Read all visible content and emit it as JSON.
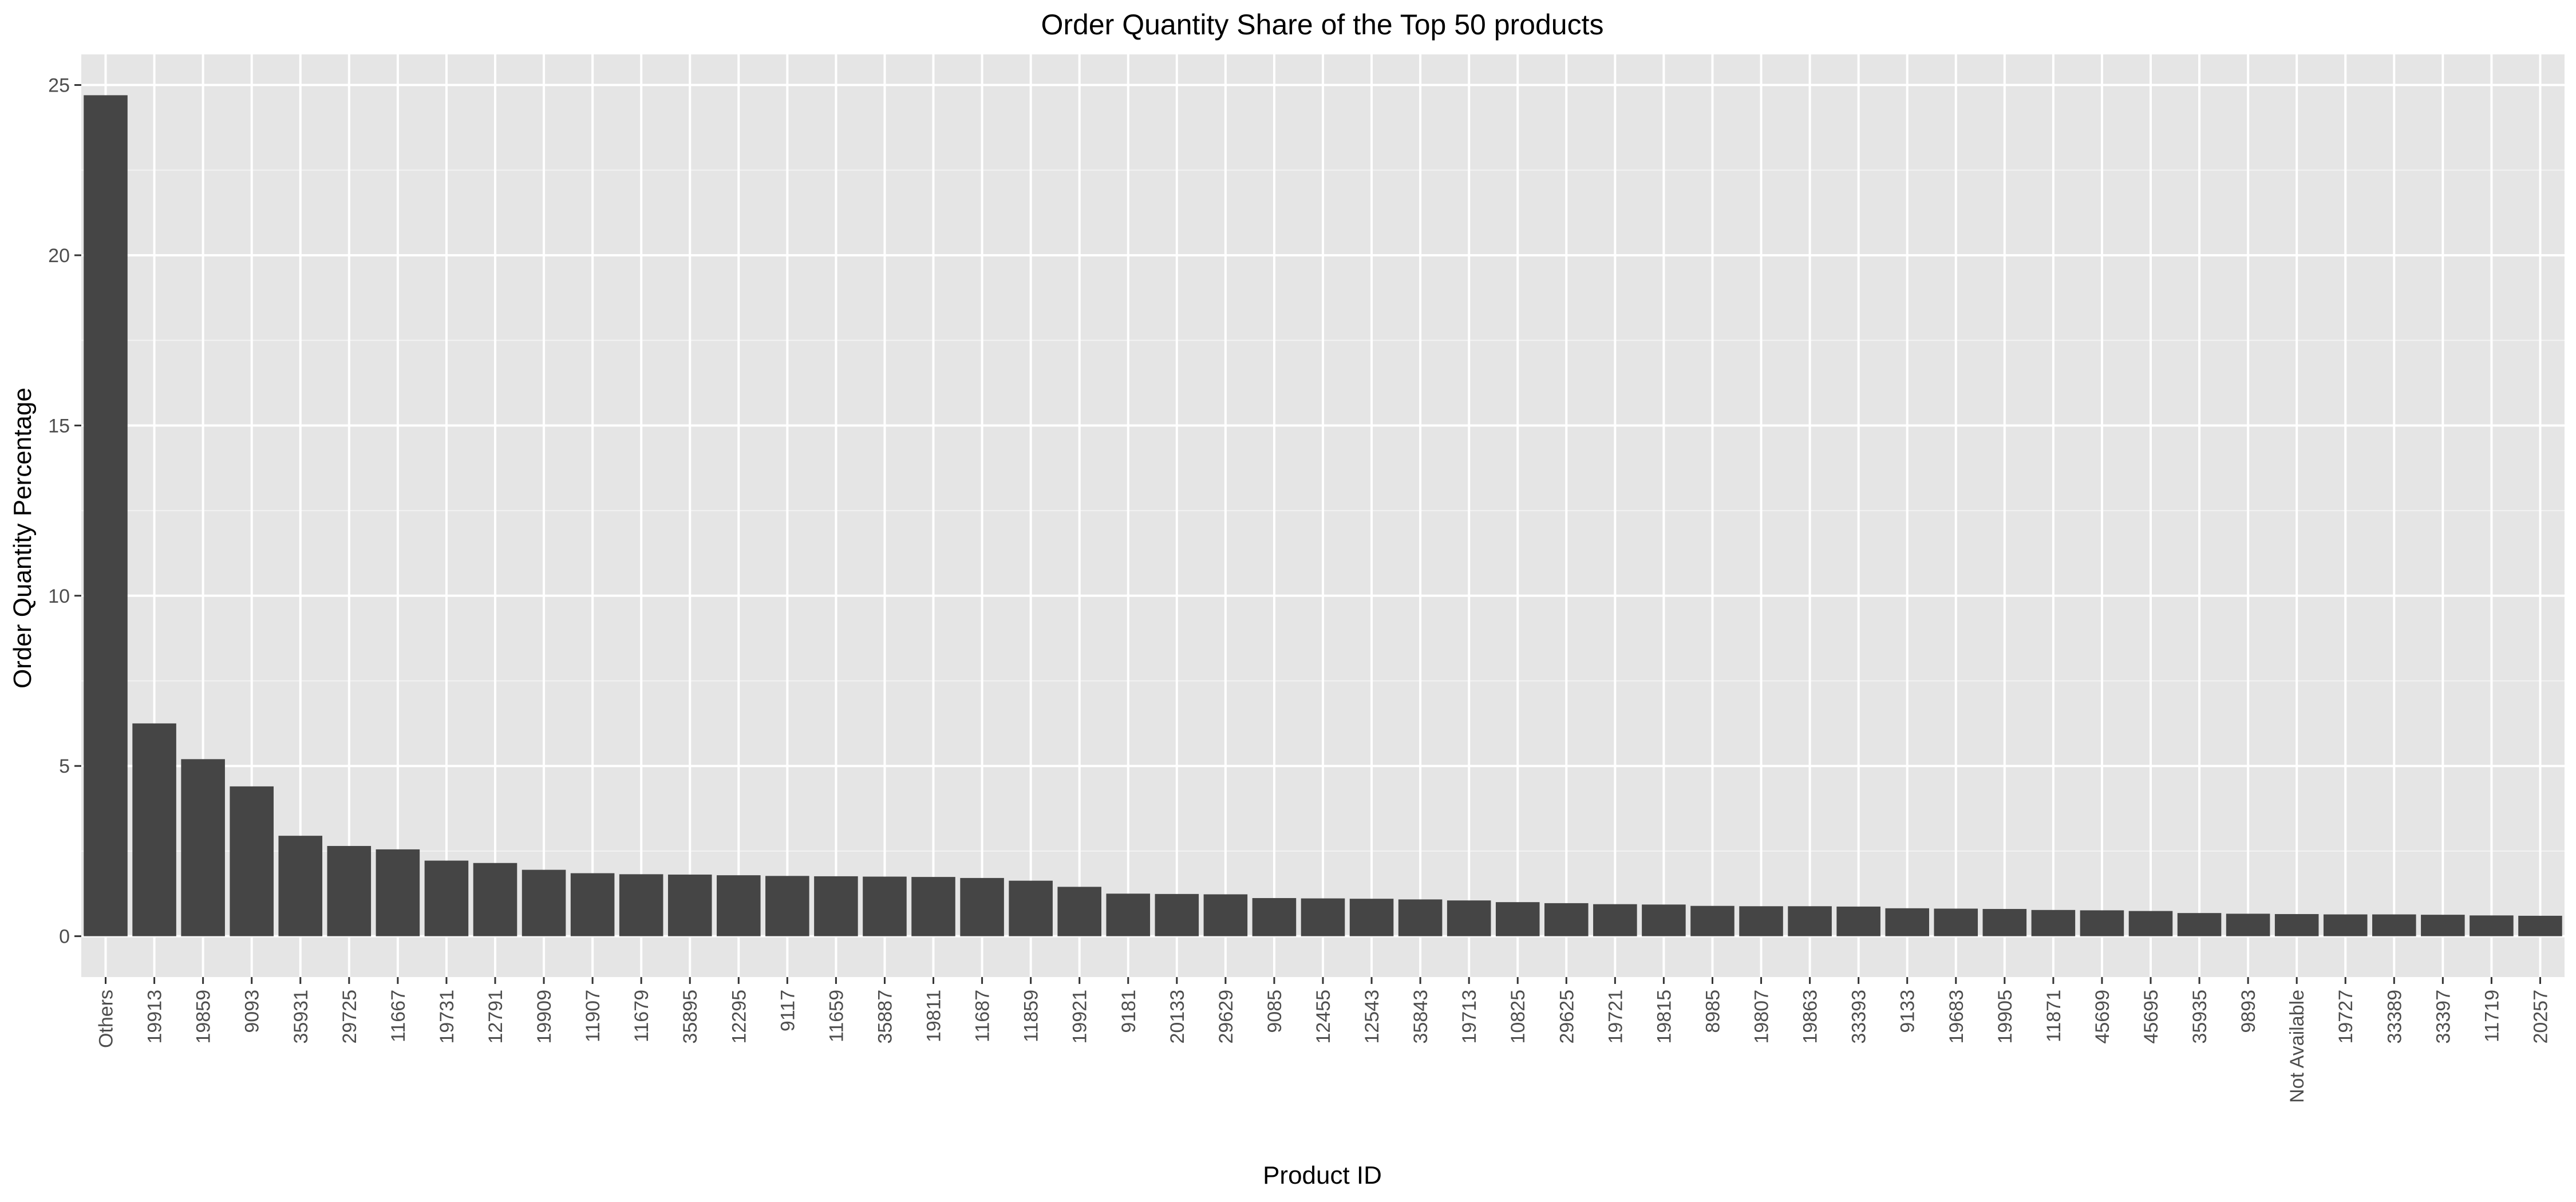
{
  "chart_data": {
    "type": "bar",
    "title": "Order Quantity Share of the Top 50 products",
    "xlabel": "Product ID",
    "ylabel": "Order Quantity Percentage",
    "ylim": [
      -1.2,
      25.9
    ],
    "yticks": [
      0,
      5,
      10,
      15,
      20,
      25
    ],
    "grid": true,
    "legend": "none",
    "colors": {
      "bar": "#454545",
      "panel": "#e5e5e5",
      "grid_major": "#ffffff",
      "grid_minor": "#f2f2f2"
    },
    "categories": [
      "Others",
      "19913",
      "19859",
      "9093",
      "35931",
      "29725",
      "11667",
      "19731",
      "12791",
      "19909",
      "11907",
      "11679",
      "35895",
      "12295",
      "9117",
      "11659",
      "35887",
      "19811",
      "11687",
      "11859",
      "19921",
      "9181",
      "20133",
      "29629",
      "9085",
      "12455",
      "12543",
      "35843",
      "19713",
      "10825",
      "29625",
      "19721",
      "19815",
      "8985",
      "19807",
      "19863",
      "33393",
      "9133",
      "19683",
      "19905",
      "11871",
      "45699",
      "45695",
      "35935",
      "9893",
      "Not Available",
      "19727",
      "33389",
      "33397",
      "11719",
      "20257"
    ],
    "values": [
      24.7,
      6.25,
      5.2,
      4.4,
      2.95,
      2.65,
      2.55,
      2.22,
      2.15,
      1.95,
      1.85,
      1.82,
      1.81,
      1.79,
      1.77,
      1.76,
      1.75,
      1.74,
      1.71,
      1.63,
      1.45,
      1.25,
      1.24,
      1.23,
      1.12,
      1.11,
      1.1,
      1.08,
      1.05,
      1.0,
      0.97,
      0.94,
      0.93,
      0.89,
      0.88,
      0.88,
      0.87,
      0.82,
      0.81,
      0.8,
      0.77,
      0.76,
      0.74,
      0.68,
      0.66,
      0.65,
      0.64,
      0.64,
      0.63,
      0.61,
      0.6
    ]
  }
}
